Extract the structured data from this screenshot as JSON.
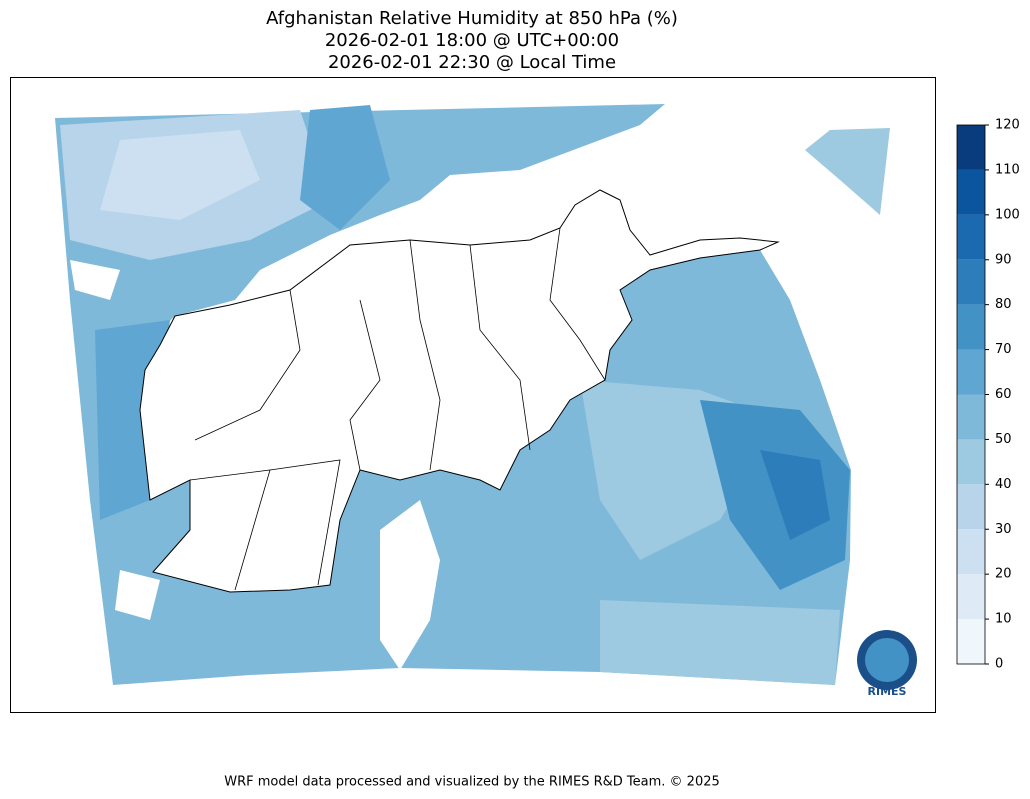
{
  "title": [
    "Afghanistan Relative Humidity at 850 hPa (%)",
    "2026-02-01 18:00 @ UTC+00:00",
    "2026-02-01 22:30 @ Local Time"
  ],
  "colorbar": {
    "levels": [
      0,
      10,
      20,
      30,
      40,
      50,
      60,
      70,
      80,
      90,
      100,
      110,
      120
    ],
    "colors": [
      "#eff6fc",
      "#deebf7",
      "#cde0f1",
      "#b7d4ea",
      "#9ecae1",
      "#7fb9da",
      "#60a6d2",
      "#4292c6",
      "#2d7dbb",
      "#1b69af",
      "#0b559f",
      "#083c7d"
    ]
  },
  "logo": "RIMES",
  "footer": "WRF model data processed and visualized by the RIMES R&D Team. © 2025"
}
